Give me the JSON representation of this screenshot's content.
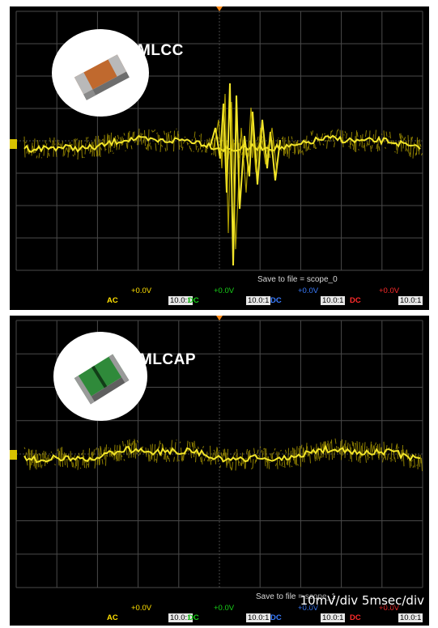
{
  "panels": [
    {
      "label": "MLCC",
      "save_text": "Save to file =  scope_0",
      "channels": [
        {
          "offset": "+0.0V",
          "coupling": "AC",
          "probe": "10.0:1",
          "color": "#ffe000"
        },
        {
          "offset": "+0.0V",
          "coupling": "DC",
          "probe": "10.0:1",
          "color": "#19d219"
        },
        {
          "offset": "+0.0V",
          "coupling": "DC",
          "probe": "10.0:1",
          "color": "#3a7cff"
        },
        {
          "offset": "+0.0V",
          "coupling": "DC",
          "probe": "10.0:1",
          "color": "#ff2b2b"
        }
      ]
    },
    {
      "label": "MLCAP",
      "save_text": "Save to file =  scope_1",
      "channels": [
        {
          "offset": "+0.0V",
          "coupling": "AC",
          "probe": "10.0:1",
          "color": "#ffe000"
        },
        {
          "offset": "+0.0V",
          "coupling": "DC",
          "probe": "10.0:1",
          "color": "#19d219"
        },
        {
          "offset": "+0.0V",
          "coupling": "DC",
          "probe": "10.0:1",
          "color": "#3a7cff"
        },
        {
          "offset": "+0.0V",
          "coupling": "DC",
          "probe": "10.0:1",
          "color": "#ff2b2b"
        }
      ]
    }
  ],
  "scale_text": "10mV/div 5msec/div",
  "colors": {
    "trace": "#f2e52a",
    "grid": "#4a4a4a",
    "background": "#000000",
    "trigger": "#ff8c1a"
  }
}
